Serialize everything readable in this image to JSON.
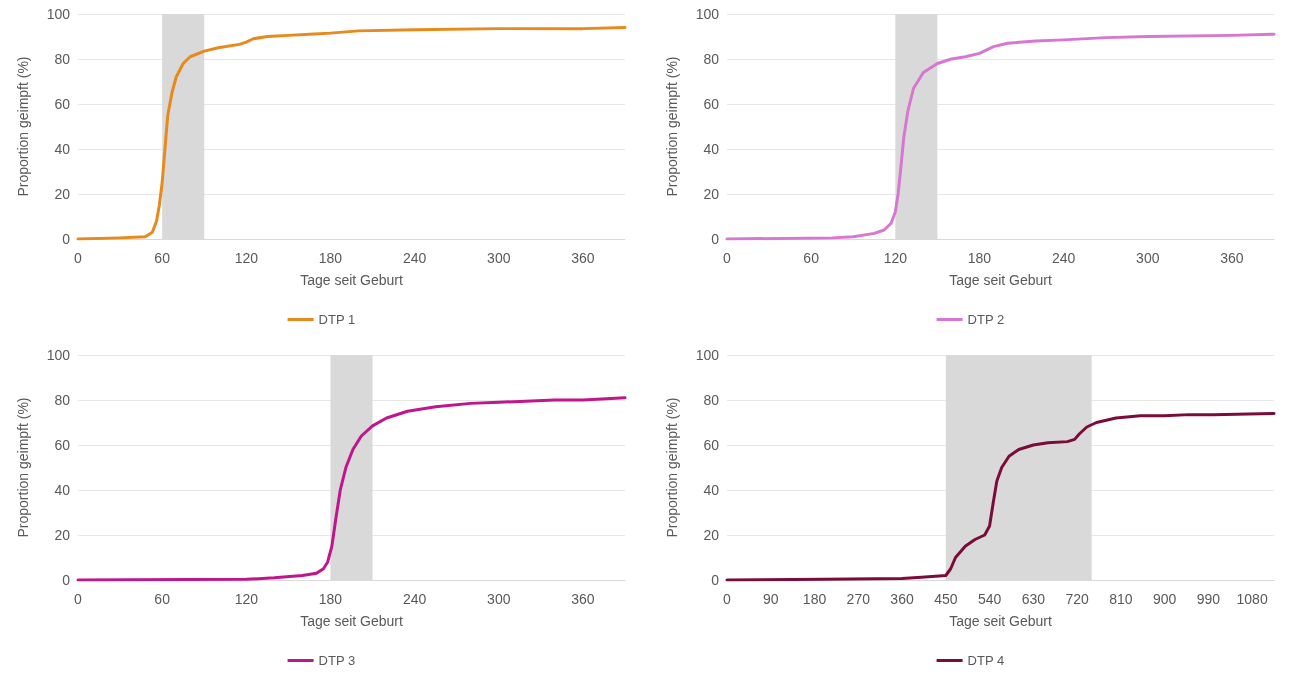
{
  "chart_data": [
    {
      "type": "line",
      "xlabel": "Tage seit Geburt",
      "ylabel": "Proportion geimpft (%)",
      "xlim": [
        0,
        390
      ],
      "xticks": [
        0,
        60,
        120,
        180,
        240,
        300,
        360
      ],
      "ylim": [
        0,
        100
      ],
      "yticks": [
        0,
        20,
        40,
        60,
        80,
        100
      ],
      "grid": "y",
      "legend": "bottom",
      "marker": "none",
      "line_style": "solid",
      "bands": [
        {
          "axis": "x",
          "from": 60,
          "to": 90,
          "color": "#d9d9d9"
        }
      ],
      "series": [
        {
          "name": "DTP 1",
          "color": "#e8891c",
          "x": [
            0,
            30,
            48,
            53,
            56,
            58,
            60,
            62,
            64,
            67,
            70,
            75,
            80,
            90,
            100,
            115,
            120,
            125,
            135,
            150,
            165,
            180,
            200,
            240,
            300,
            360,
            390
          ],
          "values": [
            0,
            0.5,
            1,
            3,
            8,
            15,
            25,
            40,
            55,
            65,
            72,
            78,
            81,
            83.5,
            85,
            86.5,
            87.5,
            89,
            90,
            90.5,
            91,
            91.5,
            92.5,
            93,
            93.5,
            93.5,
            94
          ]
        }
      ]
    },
    {
      "type": "line",
      "xlabel": "Tage seit Geburt",
      "ylabel": "Proportion geimpft (%)",
      "xlim": [
        0,
        390
      ],
      "xticks": [
        0,
        60,
        120,
        180,
        240,
        300,
        360
      ],
      "ylim": [
        0,
        100
      ],
      "yticks": [
        0,
        20,
        40,
        60,
        80,
        100
      ],
      "grid": "y",
      "legend": "bottom",
      "marker": "none",
      "line_style": "solid",
      "bands": [
        {
          "axis": "x",
          "from": 120,
          "to": 150,
          "color": "#d9d9d9"
        }
      ],
      "series": [
        {
          "name": "DTP 2",
          "color": "#d877d0",
          "x": [
            0,
            75,
            90,
            105,
            112,
            117,
            120,
            122,
            124,
            126,
            129,
            133,
            140,
            150,
            160,
            170,
            180,
            190,
            200,
            220,
            240,
            270,
            300,
            360,
            390
          ],
          "values": [
            0,
            0.5,
            1,
            2.5,
            4,
            7,
            12,
            20,
            32,
            45,
            57,
            67,
            74,
            78,
            80,
            81,
            82.5,
            85.5,
            87,
            88,
            88.5,
            89.5,
            90,
            90.5,
            91
          ]
        }
      ]
    },
    {
      "type": "line",
      "xlabel": "Tage seit Geburt",
      "ylabel": "Proportion geimpft (%)",
      "xlim": [
        0,
        390
      ],
      "xticks": [
        0,
        60,
        120,
        180,
        240,
        300,
        360
      ],
      "ylim": [
        0,
        100
      ],
      "yticks": [
        0,
        20,
        40,
        60,
        80,
        100
      ],
      "grid": "y",
      "legend": "bottom",
      "marker": "none",
      "line_style": "solid",
      "bands": [
        {
          "axis": "x",
          "from": 180,
          "to": 210,
          "color": "#d9d9d9"
        }
      ],
      "series": [
        {
          "name": "DTP 3",
          "color": "#c0168c",
          "x": [
            0,
            120,
            140,
            160,
            170,
            175,
            178,
            181,
            184,
            187,
            191,
            196,
            202,
            210,
            220,
            235,
            255,
            280,
            300,
            340,
            360,
            390
          ],
          "values": [
            0,
            0.3,
            1,
            2,
            3,
            5,
            8,
            15,
            28,
            40,
            50,
            58,
            64,
            68.5,
            72,
            75,
            77,
            78.5,
            79,
            80,
            80,
            81
          ]
        }
      ]
    },
    {
      "type": "line",
      "xlabel": "Tage seit Geburt",
      "ylabel": "Proportion geimpft (%)",
      "xlim": [
        0,
        1125
      ],
      "xticks": [
        0,
        90,
        180,
        270,
        360,
        450,
        540,
        630,
        720,
        810,
        900,
        990,
        1080
      ],
      "ylim": [
        0,
        100
      ],
      "yticks": [
        0,
        20,
        40,
        60,
        80,
        100
      ],
      "grid": "y",
      "legend": "bottom",
      "marker": "none",
      "line_style": "solid",
      "bands": [
        {
          "axis": "x",
          "from": 450,
          "to": 750,
          "color": "#d9d9d9"
        }
      ],
      "series": [
        {
          "name": "DTP 4",
          "color": "#7b0c3a",
          "x": [
            0,
            200,
            360,
            400,
            450,
            460,
            470,
            490,
            510,
            530,
            540,
            548,
            555,
            565,
            580,
            600,
            630,
            660,
            700,
            715,
            725,
            740,
            760,
            800,
            850,
            900,
            950,
            1000,
            1125
          ],
          "values": [
            0,
            0.3,
            0.7,
            1.2,
            2,
            5,
            10,
            15,
            18,
            20,
            24,
            35,
            44,
            50,
            55,
            58,
            60,
            61,
            61.5,
            62.5,
            65,
            68,
            70,
            72,
            73,
            73,
            73.5,
            73.5,
            74
          ]
        }
      ]
    }
  ]
}
